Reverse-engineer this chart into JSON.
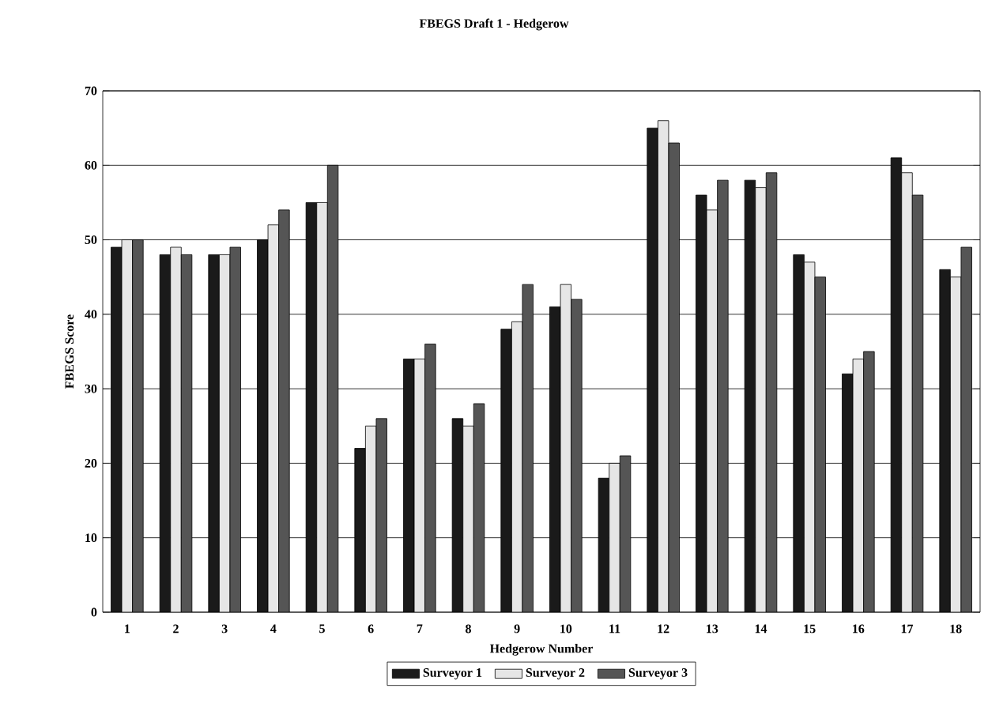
{
  "chart_data": {
    "type": "bar",
    "title": "FBEGS Draft 1 - Hedgerow",
    "xlabel": "Hedgerow Number",
    "ylabel": "FBEGS Score",
    "categories": [
      "1",
      "2",
      "3",
      "4",
      "5",
      "6",
      "7",
      "8",
      "9",
      "10",
      "11",
      "12",
      "13",
      "14",
      "15",
      "16",
      "17",
      "18"
    ],
    "series": [
      {
        "name": "Surveyor 1",
        "color": "#1a1a1a",
        "values": [
          49,
          48,
          48,
          50,
          55,
          22,
          34,
          26,
          38,
          41,
          18,
          65,
          56,
          58,
          48,
          32,
          61,
          46
        ]
      },
      {
        "name": "Surveyor 2",
        "color": "#e6e6e6",
        "values": [
          50,
          49,
          48,
          52,
          55,
          25,
          34,
          25,
          39,
          44,
          20,
          66,
          54,
          57,
          47,
          34,
          59,
          45
        ]
      },
      {
        "name": "Surveyor 3",
        "color": "#555555",
        "values": [
          50,
          48,
          49,
          54,
          60,
          26,
          36,
          28,
          44,
          42,
          21,
          63,
          58,
          59,
          45,
          35,
          56,
          49
        ]
      }
    ],
    "ylim": [
      0,
      70
    ],
    "yticks": [
      0,
      10,
      20,
      30,
      40,
      50,
      60,
      70
    ],
    "grid": "y",
    "legend": "bottom"
  }
}
